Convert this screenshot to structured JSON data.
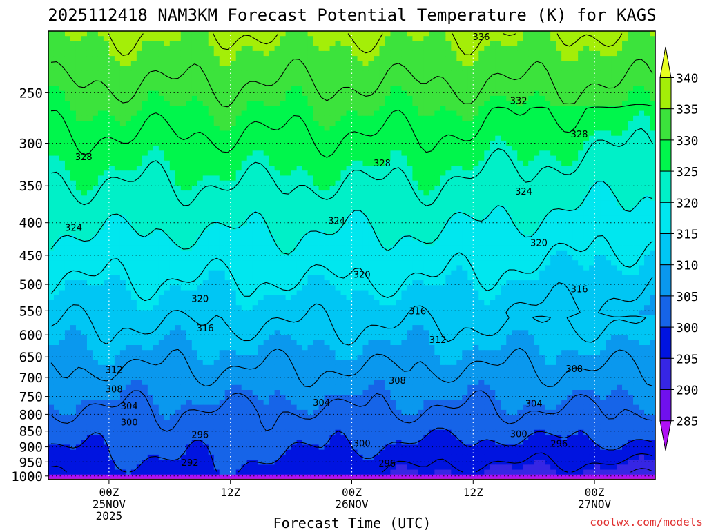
{
  "chart_data": {
    "type": "heatmap",
    "title": "2025112418 NAM3KM Forecast Potential Temperature (K) for KAGS",
    "xlabel": "Forecast Time (UTC)",
    "ylabel": "",
    "credit": "coolwx.com/models",
    "x_ticks": [
      {
        "label": "00Z",
        "sub1": "25NOV",
        "sub2": "2025",
        "hours": 6
      },
      {
        "label": "12Z",
        "sub1": "",
        "sub2": "",
        "hours": 18
      },
      {
        "label": "00Z",
        "sub1": "26NOV",
        "sub2": "",
        "hours": 30
      },
      {
        "label": "12Z",
        "sub1": "",
        "sub2": "",
        "hours": 42
      },
      {
        "label": "00Z",
        "sub1": "27NOV",
        "sub2": "",
        "hours": 54
      }
    ],
    "xlim_hours": [
      0,
      60
    ],
    "y_ticks": [
      250,
      300,
      350,
      400,
      450,
      500,
      550,
      600,
      650,
      700,
      750,
      800,
      850,
      900,
      950,
      1000
    ],
    "y_gridlines": [
      250,
      300,
      350,
      400,
      450,
      500,
      550,
      600,
      650,
      700,
      750,
      800,
      850,
      900,
      950,
      1000
    ],
    "ylim_hPa": [
      200,
      1013
    ],
    "y_scale": "log-pressure",
    "colorbar": {
      "labels": [
        "340",
        "335",
        "330",
        "325",
        "320",
        "315",
        "310",
        "305",
        "300",
        "295",
        "290",
        "285"
      ],
      "bins": [
        {
          "lo": 340,
          "hi": 345,
          "color": "#e7ff20"
        },
        {
          "lo": 335,
          "hi": 340,
          "color": "#a4ee08"
        },
        {
          "lo": 330,
          "hi": 335,
          "color": "#3ce33c"
        },
        {
          "lo": 325,
          "hi": 330,
          "color": "#00f64c"
        },
        {
          "lo": 320,
          "hi": 325,
          "color": "#00f0c8"
        },
        {
          "lo": 315,
          "hi": 320,
          "color": "#00e7ef"
        },
        {
          "lo": 310,
          "hi": 315,
          "color": "#00c6f4"
        },
        {
          "lo": 305,
          "hi": 310,
          "color": "#0a98ee"
        },
        {
          "lo": 300,
          "hi": 305,
          "color": "#1664e8"
        },
        {
          "lo": 295,
          "hi": 300,
          "color": "#0014e0"
        },
        {
          "lo": 290,
          "hi": 295,
          "color": "#3626e4"
        },
        {
          "lo": 285,
          "hi": 290,
          "color": "#7010ee"
        },
        {
          "lo": 280,
          "hi": 285,
          "color": "#b010f4"
        }
      ]
    },
    "contour_labels": [
      {
        "text": "336",
        "hours": 42.8,
        "hPa": 204
      },
      {
        "text": "332",
        "hours": 46.5,
        "hPa": 257
      },
      {
        "text": "328",
        "hours": 3.5,
        "hPa": 315
      },
      {
        "text": "328",
        "hours": 33.0,
        "hPa": 322
      },
      {
        "text": "328",
        "hours": 52.5,
        "hPa": 290
      },
      {
        "text": "324",
        "hours": 2.5,
        "hPa": 407
      },
      {
        "text": "324",
        "hours": 28.5,
        "hPa": 397
      },
      {
        "text": "324",
        "hours": 47.0,
        "hPa": 357
      },
      {
        "text": "320",
        "hours": 48.5,
        "hPa": 430
      },
      {
        "text": "320",
        "hours": 31.0,
        "hPa": 482
      },
      {
        "text": "320",
        "hours": 15.0,
        "hPa": 526
      },
      {
        "text": "316",
        "hours": 52.5,
        "hPa": 508
      },
      {
        "text": "316",
        "hours": 36.5,
        "hPa": 550
      },
      {
        "text": "316",
        "hours": 15.5,
        "hPa": 585
      },
      {
        "text": "312",
        "hours": 38.5,
        "hPa": 610
      },
      {
        "text": "312",
        "hours": 6.5,
        "hPa": 680
      },
      {
        "text": "308",
        "hours": 34.5,
        "hPa": 707
      },
      {
        "text": "308",
        "hours": 52.0,
        "hPa": 678
      },
      {
        "text": "308",
        "hours": 6.5,
        "hPa": 730
      },
      {
        "text": "304",
        "hours": 27.0,
        "hPa": 766
      },
      {
        "text": "304",
        "hours": 48.0,
        "hPa": 769
      },
      {
        "text": "304",
        "hours": 8.0,
        "hPa": 776
      },
      {
        "text": "300",
        "hours": 8.0,
        "hPa": 822
      },
      {
        "text": "300",
        "hours": 46.5,
        "hPa": 858
      },
      {
        "text": "300",
        "hours": 31.0,
        "hPa": 888
      },
      {
        "text": "296",
        "hours": 15.0,
        "hPa": 860
      },
      {
        "text": "296",
        "hours": 50.5,
        "hPa": 889
      },
      {
        "text": "296",
        "hours": 33.5,
        "hPa": 954
      },
      {
        "text": "292",
        "hours": 14.0,
        "hPa": 952
      }
    ],
    "contour_levels": [
      292,
      296,
      300,
      304,
      308,
      312,
      316,
      320,
      324,
      328,
      332,
      336
    ]
  }
}
